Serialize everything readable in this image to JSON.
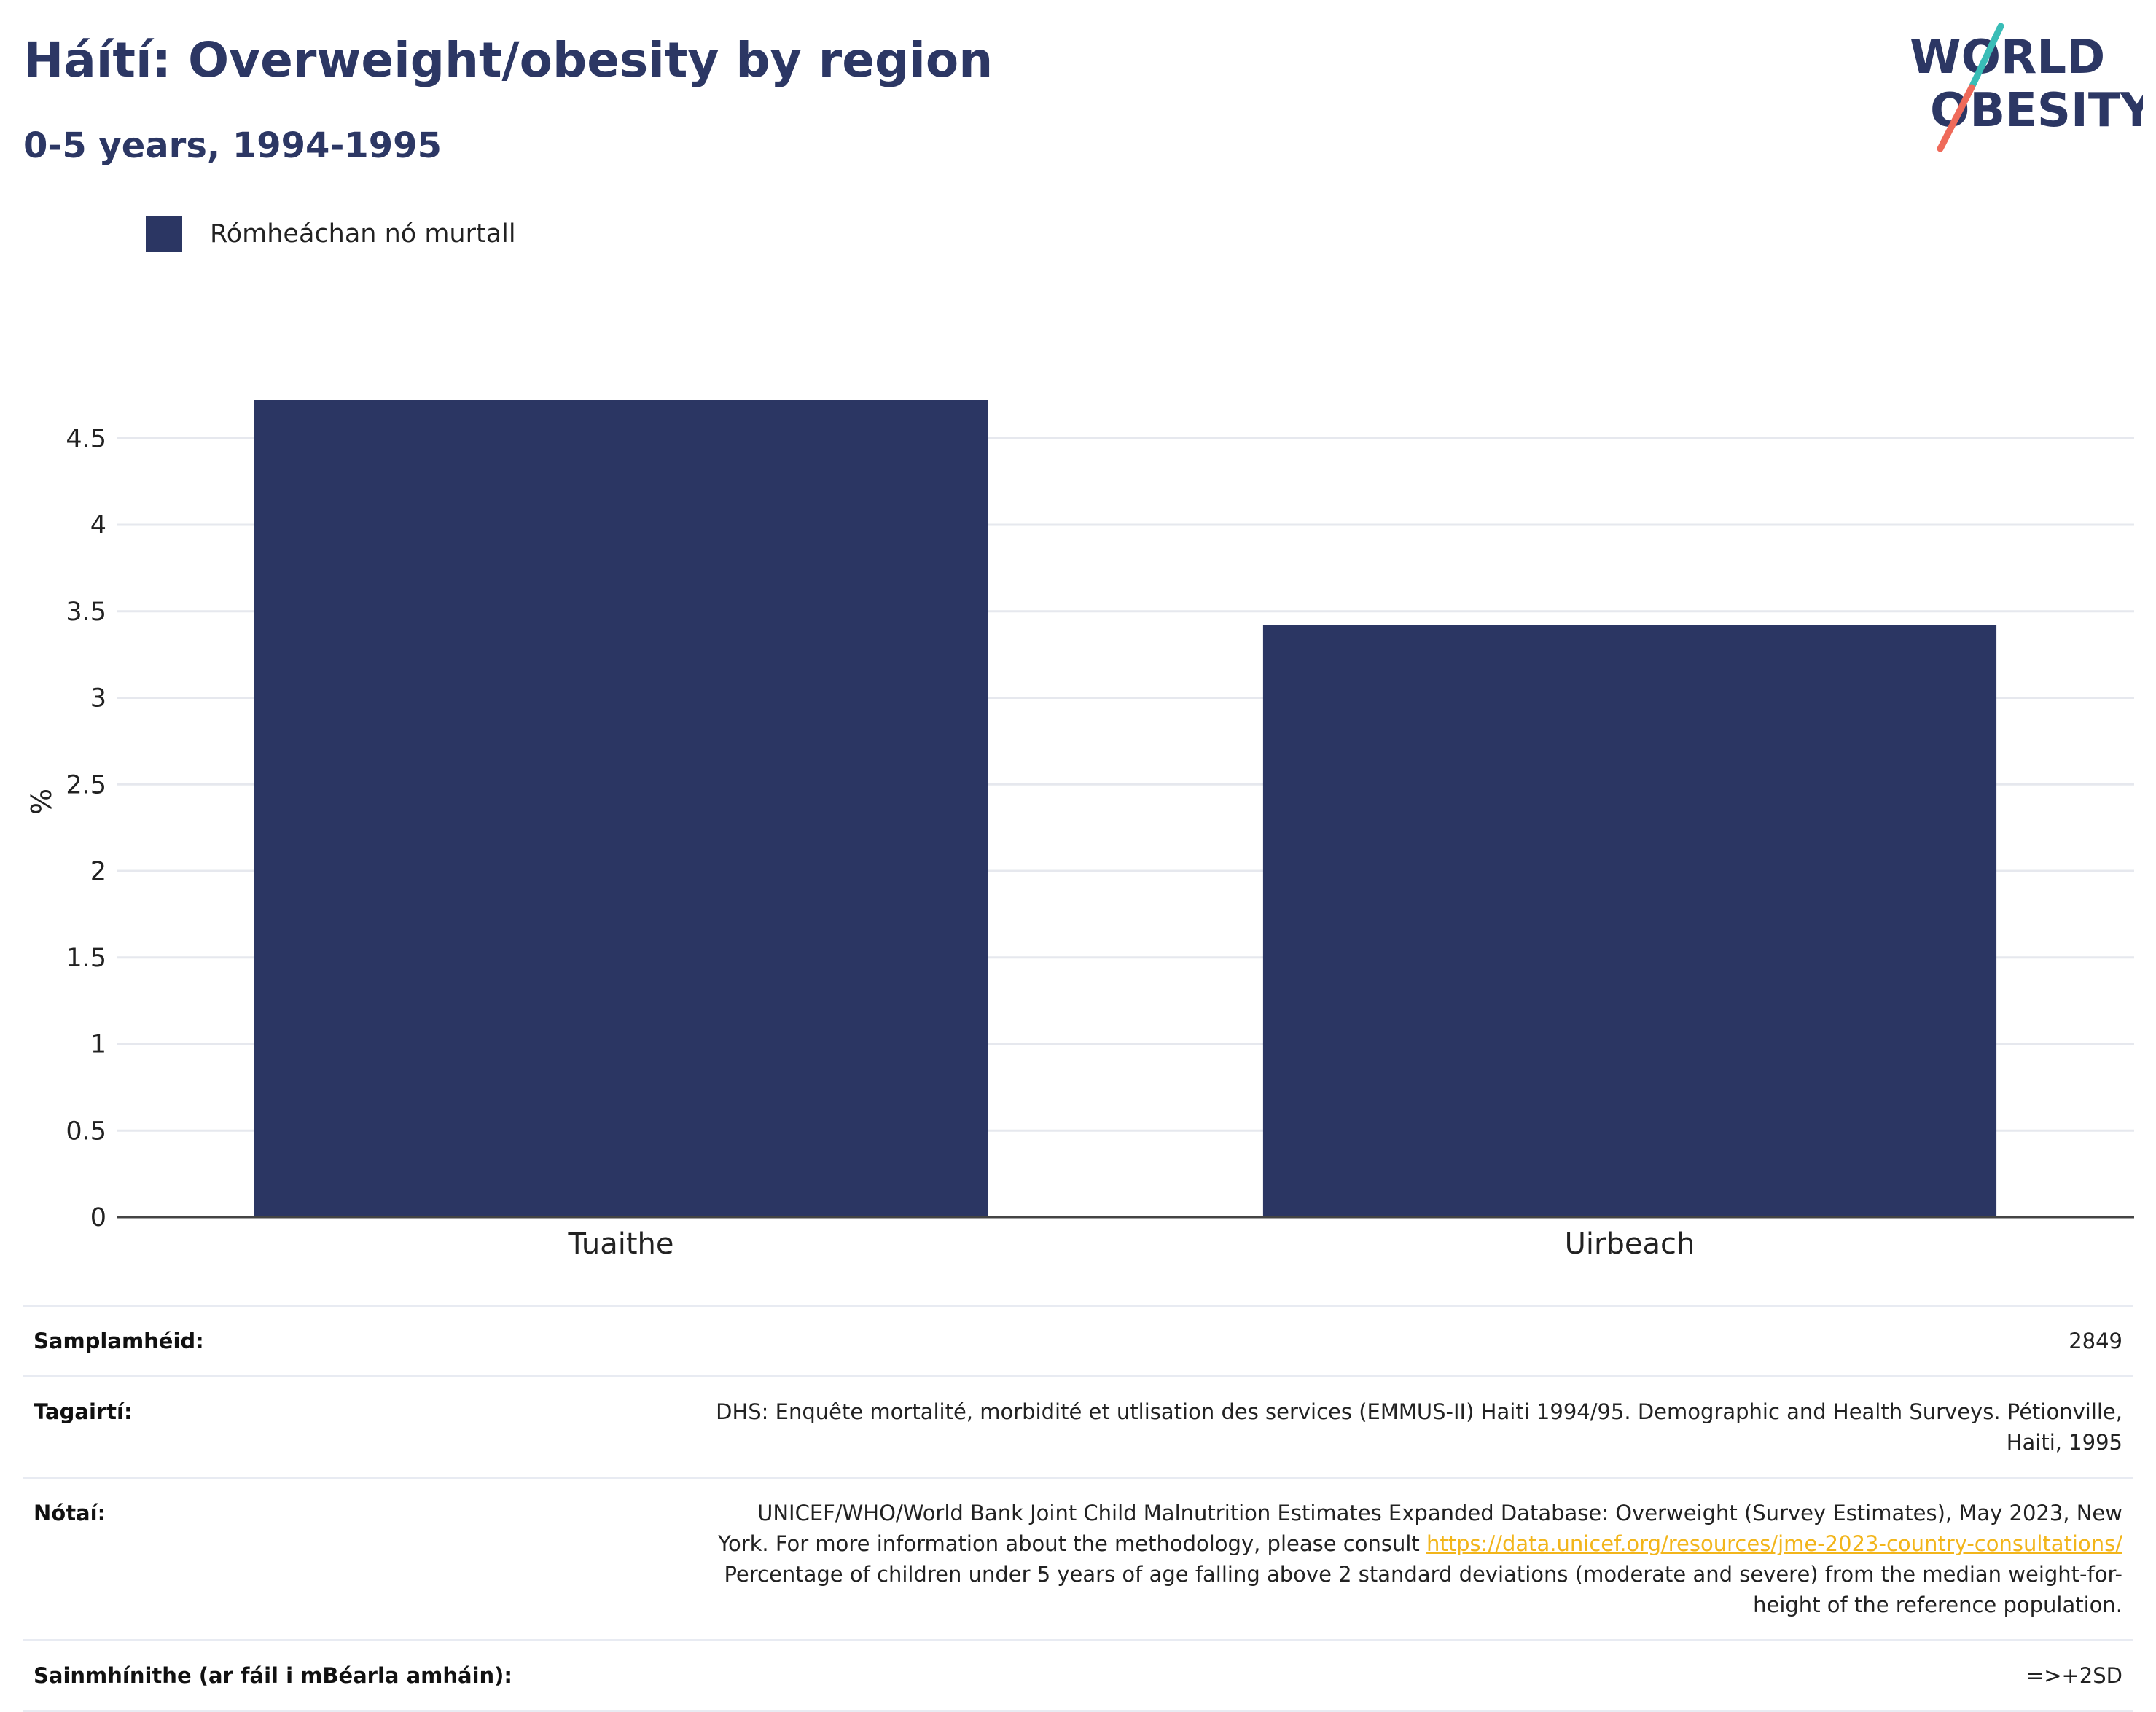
{
  "header": {
    "title": "Háítí: Overweight/obesity by region",
    "subtitle": "0-5 years, 1994-1995"
  },
  "logo": {
    "line1": "WORLD",
    "line2": "OBESITY",
    "colors": {
      "text": "#2c3764",
      "slash_top": "#39bdb7",
      "slash_bottom": "#ef6a5a"
    }
  },
  "legend": {
    "label": "Rómheáchan nó murtall",
    "color": "#2b3663"
  },
  "chart_data": {
    "type": "bar",
    "categories": [
      "Tuaithe",
      "Uirbeach"
    ],
    "series": [
      {
        "name": "Rómheáchan nó murtall",
        "values": [
          4.72,
          3.42
        ],
        "color": "#2b3663"
      }
    ],
    "ylabel": "%",
    "ylim": [
      0,
      4.8
    ],
    "yticks": [
      "0",
      "0.5",
      "1",
      "1.5",
      "2",
      "2.5",
      "3",
      "3.5",
      "4",
      "4.5"
    ],
    "grid": true
  },
  "info": {
    "sample_size": {
      "label": "Samplamhéid:",
      "value": "2849"
    },
    "references": {
      "label": "Tagairtí:",
      "value": "DHS: Enquête mortalité, morbidité et utlisation des services (EMMUS-II) Haiti 1994/95. Demographic and Health Surveys. Pétionville, Haiti, 1995"
    },
    "notes": {
      "label": "Nótaí:",
      "text_before": "UNICEF/WHO/World Bank Joint Child Malnutrition Estimates Expanded Database: Overweight (Survey Estimates), May 2023, New York. For more information about the methodology, please consult ",
      "link": "https://data.unicef.org/resources/jme-2023-country-consultations/",
      "text_after": " Percentage of children under 5 years of age falling above 2 standard deviations (moderate and severe) from the median weight-for-height of the reference population."
    },
    "definitions": {
      "label": "Sainmhínithe (ar fáil i mBéarla amháin):",
      "value": "=>+2SD"
    }
  }
}
